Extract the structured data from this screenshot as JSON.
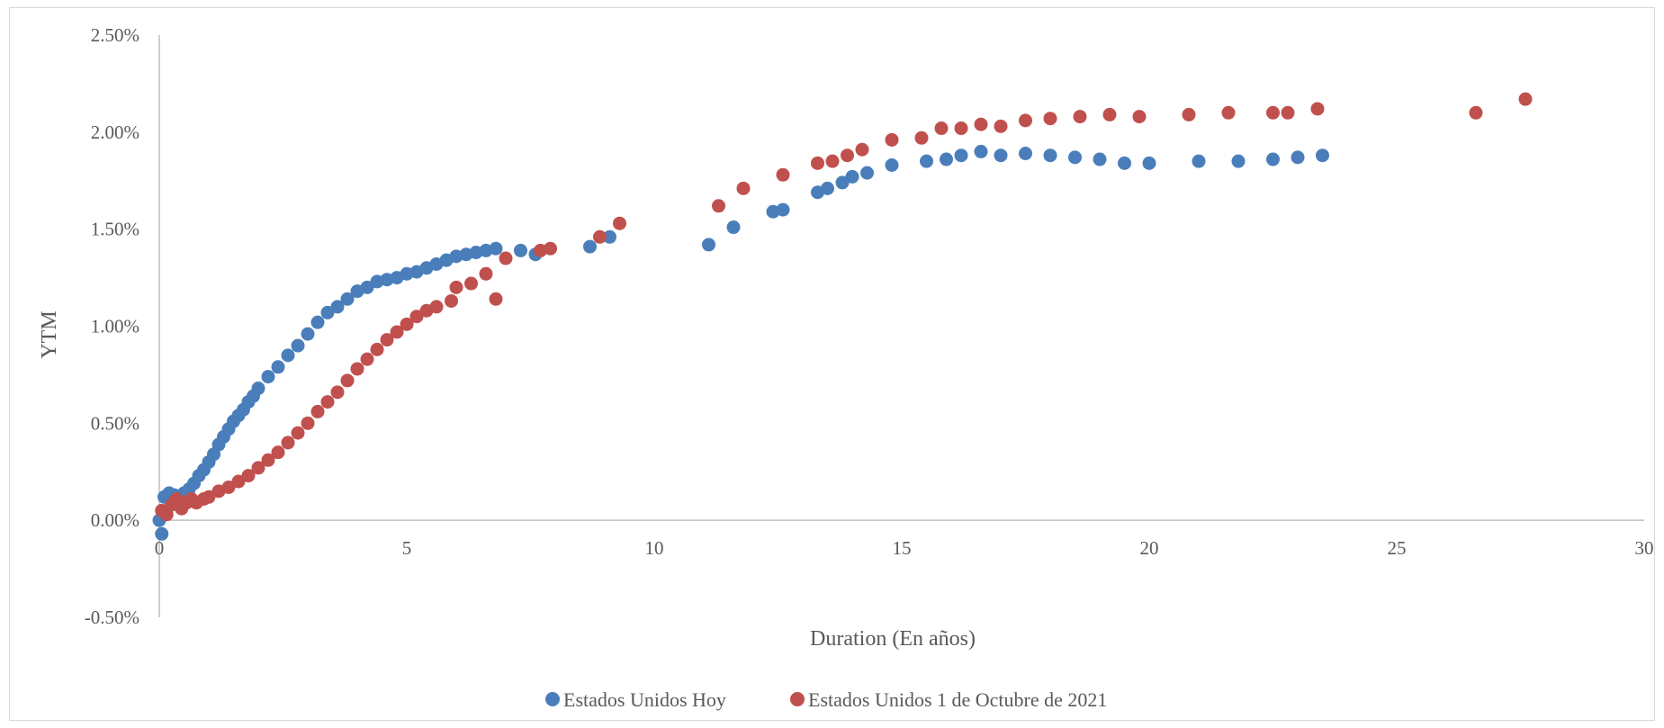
{
  "chart_data": {
    "type": "scatter",
    "title": "",
    "xlabel": "Duration (En años)",
    "ylabel": "YTM",
    "xlim": [
      0,
      30
    ],
    "ylim": [
      -0.005,
      0.025
    ],
    "x_ticks": [
      0,
      5,
      10,
      15,
      20,
      25,
      30
    ],
    "y_ticks": [
      -0.005,
      0,
      0.005,
      0.01,
      0.015,
      0.02,
      0.025
    ],
    "x_tick_labels": [
      "0",
      "5",
      "10",
      "15",
      "20",
      "25",
      "30"
    ],
    "y_tick_labels": [
      "-0.50%",
      "0.00%",
      "0.50%",
      "1.00%",
      "1.50%",
      "2.00%",
      "2.50%"
    ],
    "grid": false,
    "legend_position": "bottom",
    "series": [
      {
        "name": "Estados Unidos Hoy",
        "color": "#4a7ebb",
        "points": [
          [
            0.0,
            0.0
          ],
          [
            0.05,
            -0.0007
          ],
          [
            0.1,
            0.0012
          ],
          [
            0.2,
            0.0014
          ],
          [
            0.3,
            0.0013
          ],
          [
            0.4,
            0.0012
          ],
          [
            0.5,
            0.0014
          ],
          [
            0.6,
            0.0016
          ],
          [
            0.7,
            0.0019
          ],
          [
            0.8,
            0.0023
          ],
          [
            0.9,
            0.0026
          ],
          [
            1.0,
            0.003
          ],
          [
            1.1,
            0.0034
          ],
          [
            1.2,
            0.0039
          ],
          [
            1.3,
            0.0043
          ],
          [
            1.4,
            0.0047
          ],
          [
            1.5,
            0.0051
          ],
          [
            1.6,
            0.0054
          ],
          [
            1.7,
            0.0057
          ],
          [
            1.8,
            0.0061
          ],
          [
            1.9,
            0.0064
          ],
          [
            2.0,
            0.0068
          ],
          [
            2.2,
            0.0074
          ],
          [
            2.4,
            0.0079
          ],
          [
            2.6,
            0.0085
          ],
          [
            2.8,
            0.009
          ],
          [
            3.0,
            0.0096
          ],
          [
            3.2,
            0.0102
          ],
          [
            3.4,
            0.0107
          ],
          [
            3.6,
            0.011
          ],
          [
            3.8,
            0.0114
          ],
          [
            4.0,
            0.0118
          ],
          [
            4.2,
            0.012
          ],
          [
            4.4,
            0.0123
          ],
          [
            4.6,
            0.0124
          ],
          [
            4.8,
            0.0125
          ],
          [
            5.0,
            0.0127
          ],
          [
            5.2,
            0.0128
          ],
          [
            5.4,
            0.013
          ],
          [
            5.6,
            0.0132
          ],
          [
            5.8,
            0.0134
          ],
          [
            6.0,
            0.0136
          ],
          [
            6.2,
            0.0137
          ],
          [
            6.4,
            0.0138
          ],
          [
            6.6,
            0.0139
          ],
          [
            6.8,
            0.014
          ],
          [
            7.3,
            0.0139
          ],
          [
            7.6,
            0.0137
          ],
          [
            8.7,
            0.0141
          ],
          [
            9.1,
            0.0146
          ],
          [
            11.1,
            0.0142
          ],
          [
            11.6,
            0.0151
          ],
          [
            12.4,
            0.0159
          ],
          [
            12.6,
            0.016
          ],
          [
            13.3,
            0.0169
          ],
          [
            13.5,
            0.0171
          ],
          [
            13.8,
            0.0174
          ],
          [
            14.0,
            0.0177
          ],
          [
            14.3,
            0.0179
          ],
          [
            14.8,
            0.0183
          ],
          [
            15.5,
            0.0185
          ],
          [
            15.9,
            0.0186
          ],
          [
            16.2,
            0.0188
          ],
          [
            16.6,
            0.019
          ],
          [
            17.0,
            0.0188
          ],
          [
            17.5,
            0.0189
          ],
          [
            18.0,
            0.0188
          ],
          [
            18.5,
            0.0187
          ],
          [
            19.0,
            0.0186
          ],
          [
            19.5,
            0.0184
          ],
          [
            20.0,
            0.0184
          ],
          [
            21.0,
            0.0185
          ],
          [
            21.8,
            0.0185
          ],
          [
            22.5,
            0.0186
          ],
          [
            23.0,
            0.0187
          ],
          [
            23.5,
            0.0188
          ]
        ]
      },
      {
        "name": "Estados Unidos 1 de Octubre de 2021",
        "color": "#c0504d",
        "points": [
          [
            0.05,
            0.0005
          ],
          [
            0.15,
            0.0003
          ],
          [
            0.25,
            0.0008
          ],
          [
            0.35,
            0.0011
          ],
          [
            0.45,
            0.0006
          ],
          [
            0.55,
            0.0009
          ],
          [
            0.65,
            0.0011
          ],
          [
            0.75,
            0.0009
          ],
          [
            0.9,
            0.0011
          ],
          [
            1.0,
            0.0012
          ],
          [
            1.2,
            0.0015
          ],
          [
            1.4,
            0.0017
          ],
          [
            1.6,
            0.002
          ],
          [
            1.8,
            0.0023
          ],
          [
            2.0,
            0.0027
          ],
          [
            2.2,
            0.0031
          ],
          [
            2.4,
            0.0035
          ],
          [
            2.6,
            0.004
          ],
          [
            2.8,
            0.0045
          ],
          [
            3.0,
            0.005
          ],
          [
            3.2,
            0.0056
          ],
          [
            3.4,
            0.0061
          ],
          [
            3.6,
            0.0066
          ],
          [
            3.8,
            0.0072
          ],
          [
            4.0,
            0.0078
          ],
          [
            4.2,
            0.0083
          ],
          [
            4.4,
            0.0088
          ],
          [
            4.6,
            0.0093
          ],
          [
            4.8,
            0.0097
          ],
          [
            5.0,
            0.0101
          ],
          [
            5.2,
            0.0105
          ],
          [
            5.4,
            0.0108
          ],
          [
            5.6,
            0.011
          ],
          [
            5.9,
            0.0113
          ],
          [
            6.0,
            0.012
          ],
          [
            6.3,
            0.0122
          ],
          [
            6.6,
            0.0127
          ],
          [
            6.8,
            0.0114
          ],
          [
            7.0,
            0.0135
          ],
          [
            7.7,
            0.0139
          ],
          [
            7.9,
            0.014
          ],
          [
            8.9,
            0.0146
          ],
          [
            9.3,
            0.0153
          ],
          [
            11.3,
            0.0162
          ],
          [
            11.8,
            0.0171
          ],
          [
            12.6,
            0.0178
          ],
          [
            13.3,
            0.0184
          ],
          [
            13.6,
            0.0185
          ],
          [
            13.9,
            0.0188
          ],
          [
            14.2,
            0.0191
          ],
          [
            14.8,
            0.0196
          ],
          [
            15.4,
            0.0197
          ],
          [
            15.8,
            0.0202
          ],
          [
            16.2,
            0.0202
          ],
          [
            16.6,
            0.0204
          ],
          [
            17.0,
            0.0203
          ],
          [
            17.5,
            0.0206
          ],
          [
            18.0,
            0.0207
          ],
          [
            18.6,
            0.0208
          ],
          [
            19.2,
            0.0209
          ],
          [
            19.8,
            0.0208
          ],
          [
            20.8,
            0.0209
          ],
          [
            21.6,
            0.021
          ],
          [
            22.5,
            0.021
          ],
          [
            22.8,
            0.021
          ],
          [
            23.4,
            0.0212
          ],
          [
            26.6,
            0.021
          ],
          [
            27.6,
            0.0217
          ]
        ]
      }
    ]
  }
}
